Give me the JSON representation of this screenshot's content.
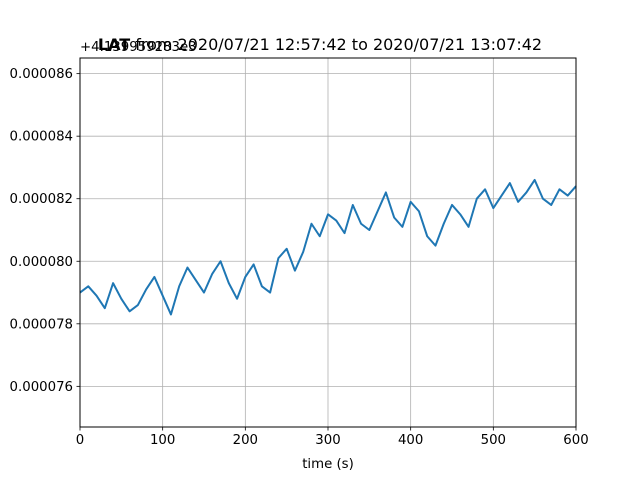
{
  "chart_data": {
    "type": "line",
    "title": {
      "prefix": "LAT",
      "rest": " from 2020/07/21 12:57:42 to 2020/07/21 13:07:42"
    },
    "offset_text": "+4.139959283e3",
    "xlabel": "time (s)",
    "ylabel": "",
    "xlim": [
      0,
      600
    ],
    "ylim": [
      7.47e-05,
      8.65e-05
    ],
    "xticks": [
      {
        "value": 0,
        "label": "0"
      },
      {
        "value": 100,
        "label": "100"
      },
      {
        "value": 200,
        "label": "200"
      },
      {
        "value": 300,
        "label": "300"
      },
      {
        "value": 400,
        "label": "400"
      },
      {
        "value": 500,
        "label": "500"
      },
      {
        "value": 600,
        "label": "600"
      }
    ],
    "yticks": [
      {
        "value": 7.6e-05,
        "label": "0.000076"
      },
      {
        "value": 7.8e-05,
        "label": "0.000078"
      },
      {
        "value": 8e-05,
        "label": "0.000080"
      },
      {
        "value": 8.2e-05,
        "label": "0.000082"
      },
      {
        "value": 8.4e-05,
        "label": "0.000084"
      },
      {
        "value": 8.6e-05,
        "label": "0.000086"
      }
    ],
    "grid": true,
    "series": [
      {
        "color": "#1f77b4",
        "x": [
          0,
          10,
          20,
          30,
          40,
          50,
          60,
          70,
          80,
          90,
          100,
          110,
          120,
          130,
          140,
          150,
          160,
          170,
          180,
          190,
          200,
          210,
          220,
          230,
          240,
          250,
          260,
          270,
          280,
          290,
          300,
          310,
          320,
          330,
          340,
          350,
          360,
          370,
          380,
          390,
          400,
          410,
          420,
          430,
          440,
          450,
          460,
          470,
          480,
          490,
          500,
          510,
          520,
          530,
          540,
          550,
          560,
          570,
          580,
          590,
          600
        ],
        "y": [
          7.9e-05,
          7.92e-05,
          7.89e-05,
          7.85e-05,
          7.93e-05,
          7.88e-05,
          7.84e-05,
          7.86e-05,
          7.91e-05,
          7.95e-05,
          7.89e-05,
          7.83e-05,
          7.92e-05,
          7.98e-05,
          7.94e-05,
          7.9e-05,
          7.96e-05,
          8e-05,
          7.93e-05,
          7.88e-05,
          7.95e-05,
          7.99e-05,
          7.92e-05,
          7.9e-05,
          8.01e-05,
          8.04e-05,
          7.97e-05,
          8.03e-05,
          8.12e-05,
          8.08e-05,
          8.15e-05,
          8.13e-05,
          8.09e-05,
          8.18e-05,
          8.12e-05,
          8.1e-05,
          8.16e-05,
          8.22e-05,
          8.14e-05,
          8.11e-05,
          8.19e-05,
          8.16e-05,
          8.08e-05,
          8.05e-05,
          8.12e-05,
          8.18e-05,
          8.15e-05,
          8.11e-05,
          8.2e-05,
          8.23e-05,
          8.17e-05,
          8.21e-05,
          8.25e-05,
          8.19e-05,
          8.22e-05,
          8.26e-05,
          8.2e-05,
          8.18e-05,
          8.23e-05,
          8.21e-05,
          8.24e-05
        ]
      }
    ]
  }
}
